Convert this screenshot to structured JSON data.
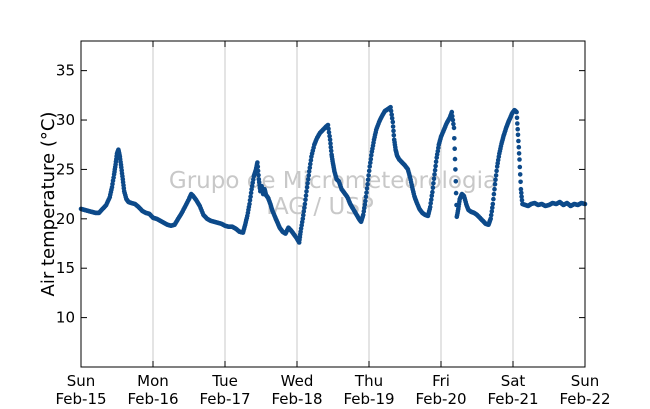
{
  "chart_data": {
    "type": "scatter",
    "title": "",
    "xlabel": "",
    "ylabel": "Air temperature (°C)",
    "xlim": [
      0,
      7
    ],
    "ylim": [
      5,
      38
    ],
    "x_unit": "days",
    "yticks": [
      10,
      15,
      20,
      25,
      30,
      35
    ],
    "xticks": [
      {
        "day": "Sun",
        "date": "Feb-15"
      },
      {
        "day": "Mon",
        "date": "Feb-16"
      },
      {
        "day": "Tue",
        "date": "Feb-17"
      },
      {
        "day": "Wed",
        "date": "Feb-18"
      },
      {
        "day": "Thu",
        "date": "Feb-19"
      },
      {
        "day": "Fri",
        "date": "Feb-20"
      },
      {
        "day": "Sat",
        "date": "Feb-21"
      },
      {
        "day": "Sun",
        "date": "Feb-22"
      }
    ],
    "grid": "vertical",
    "watermark": [
      "Grupo de Micrometeorologia",
      "IAG / USP"
    ],
    "color": "#0d4a8a",
    "series": [
      {
        "name": "",
        "points": [
          [
            0.0,
            21.0
          ],
          [
            0.05,
            20.9
          ],
          [
            0.1,
            20.8
          ],
          [
            0.15,
            20.7
          ],
          [
            0.2,
            20.6
          ],
          [
            0.25,
            20.6
          ],
          [
            0.3,
            21.0
          ],
          [
            0.35,
            21.4
          ],
          [
            0.4,
            22.2
          ],
          [
            0.43,
            23.2
          ],
          [
            0.46,
            24.5
          ],
          [
            0.48,
            25.5
          ],
          [
            0.5,
            26.6
          ],
          [
            0.52,
            27.0
          ],
          [
            0.54,
            26.3
          ],
          [
            0.56,
            25.2
          ],
          [
            0.58,
            24.0
          ],
          [
            0.6,
            22.8
          ],
          [
            0.63,
            22.0
          ],
          [
            0.66,
            21.7
          ],
          [
            0.7,
            21.6
          ],
          [
            0.75,
            21.5
          ],
          [
            0.8,
            21.2
          ],
          [
            0.85,
            20.8
          ],
          [
            0.9,
            20.6
          ],
          [
            0.95,
            20.5
          ],
          [
            1.0,
            20.1
          ],
          [
            1.05,
            20.0
          ],
          [
            1.1,
            19.8
          ],
          [
            1.15,
            19.6
          ],
          [
            1.2,
            19.4
          ],
          [
            1.25,
            19.3
          ],
          [
            1.3,
            19.4
          ],
          [
            1.35,
            20.0
          ],
          [
            1.4,
            20.6
          ],
          [
            1.45,
            21.3
          ],
          [
            1.5,
            22.0
          ],
          [
            1.53,
            22.5
          ],
          [
            1.56,
            22.3
          ],
          [
            1.6,
            21.9
          ],
          [
            1.65,
            21.3
          ],
          [
            1.7,
            20.4
          ],
          [
            1.75,
            20.0
          ],
          [
            1.8,
            19.8
          ],
          [
            1.85,
            19.7
          ],
          [
            1.9,
            19.6
          ],
          [
            1.95,
            19.5
          ],
          [
            2.0,
            19.3
          ],
          [
            2.05,
            19.2
          ],
          [
            2.1,
            19.2
          ],
          [
            2.15,
            19.0
          ],
          [
            2.2,
            18.7
          ],
          [
            2.25,
            18.6
          ],
          [
            2.28,
            19.4
          ],
          [
            2.31,
            20.3
          ],
          [
            2.34,
            21.5
          ],
          [
            2.37,
            23.0
          ],
          [
            2.4,
            24.3
          ],
          [
            2.43,
            25.0
          ],
          [
            2.45,
            25.7
          ],
          [
            2.47,
            24.0
          ],
          [
            2.49,
            22.8
          ],
          [
            2.51,
            23.3
          ],
          [
            2.53,
            22.5
          ],
          [
            2.55,
            23.0
          ],
          [
            2.57,
            22.4
          ],
          [
            2.6,
            22.1
          ],
          [
            2.63,
            21.5
          ],
          [
            2.66,
            20.8
          ],
          [
            2.7,
            20.1
          ],
          [
            2.73,
            19.6
          ],
          [
            2.76,
            19.1
          ],
          [
            2.8,
            18.7
          ],
          [
            2.84,
            18.5
          ],
          [
            2.88,
            19.1
          ],
          [
            2.92,
            18.8
          ],
          [
            2.96,
            18.4
          ],
          [
            3.0,
            18.0
          ],
          [
            3.03,
            17.6
          ],
          [
            3.05,
            18.7
          ],
          [
            3.08,
            20.0
          ],
          [
            3.11,
            21.5
          ],
          [
            3.14,
            23.2
          ],
          [
            3.17,
            24.8
          ],
          [
            3.2,
            26.3
          ],
          [
            3.24,
            27.5
          ],
          [
            3.28,
            28.2
          ],
          [
            3.32,
            28.7
          ],
          [
            3.36,
            29.0
          ],
          [
            3.4,
            29.3
          ],
          [
            3.43,
            29.5
          ],
          [
            3.46,
            28.0
          ],
          [
            3.48,
            26.5
          ],
          [
            3.5,
            25.6
          ],
          [
            3.52,
            24.8
          ],
          [
            3.55,
            24.0
          ],
          [
            3.58,
            23.8
          ],
          [
            3.62,
            23.0
          ],
          [
            3.66,
            22.6
          ],
          [
            3.7,
            22.2
          ],
          [
            3.74,
            21.5
          ],
          [
            3.78,
            21.0
          ],
          [
            3.82,
            20.5
          ],
          [
            3.86,
            20.0
          ],
          [
            3.89,
            19.7
          ],
          [
            3.92,
            20.4
          ],
          [
            3.95,
            21.8
          ],
          [
            3.98,
            23.5
          ],
          [
            4.01,
            25.3
          ],
          [
            4.04,
            26.8
          ],
          [
            4.07,
            28.0
          ],
          [
            4.1,
            29.0
          ],
          [
            4.14,
            29.8
          ],
          [
            4.18,
            30.4
          ],
          [
            4.22,
            30.9
          ],
          [
            4.26,
            31.1
          ],
          [
            4.3,
            31.3
          ],
          [
            4.33,
            29.8
          ],
          [
            4.35,
            28.0
          ],
          [
            4.37,
            27.0
          ],
          [
            4.39,
            26.4
          ],
          [
            4.42,
            26.0
          ],
          [
            4.46,
            25.7
          ],
          [
            4.5,
            25.4
          ],
          [
            4.54,
            25.0
          ],
          [
            4.57,
            24.2
          ],
          [
            4.6,
            23.2
          ],
          [
            4.63,
            22.3
          ],
          [
            4.66,
            21.7
          ],
          [
            4.7,
            21.0
          ],
          [
            4.74,
            20.6
          ],
          [
            4.78,
            20.4
          ],
          [
            4.82,
            20.3
          ],
          [
            4.85,
            21.2
          ],
          [
            4.88,
            22.7
          ],
          [
            4.91,
            24.5
          ],
          [
            4.94,
            26.2
          ],
          [
            4.97,
            27.5
          ],
          [
            5.0,
            28.3
          ],
          [
            5.04,
            29.0
          ],
          [
            5.08,
            29.7
          ],
          [
            5.12,
            30.2
          ],
          [
            5.15,
            30.8
          ],
          [
            5.18,
            29.2
          ],
          [
            5.2,
            25.0
          ],
          [
            5.22,
            20.2
          ],
          [
            5.24,
            21.0
          ],
          [
            5.26,
            22.0
          ],
          [
            5.29,
            22.5
          ],
          [
            5.32,
            22.3
          ],
          [
            5.35,
            21.5
          ],
          [
            5.38,
            20.9
          ],
          [
            5.42,
            20.7
          ],
          [
            5.46,
            20.6
          ],
          [
            5.5,
            20.4
          ],
          [
            5.54,
            20.1
          ],
          [
            5.58,
            19.8
          ],
          [
            5.62,
            19.5
          ],
          [
            5.66,
            19.4
          ],
          [
            5.69,
            20.0
          ],
          [
            5.72,
            21.5
          ],
          [
            5.75,
            23.5
          ],
          [
            5.78,
            25.3
          ],
          [
            5.81,
            26.6
          ],
          [
            5.84,
            27.6
          ],
          [
            5.87,
            28.4
          ],
          [
            5.9,
            29.1
          ],
          [
            5.93,
            29.7
          ],
          [
            5.96,
            30.2
          ],
          [
            5.99,
            30.7
          ],
          [
            6.02,
            31.0
          ],
          [
            6.05,
            30.8
          ],
          [
            6.07,
            28.5
          ],
          [
            6.09,
            26.0
          ],
          [
            6.11,
            23.0
          ],
          [
            6.13,
            21.5
          ],
          [
            6.17,
            21.4
          ],
          [
            6.21,
            21.3
          ],
          [
            6.25,
            21.5
          ],
          [
            6.3,
            21.6
          ],
          [
            6.35,
            21.4
          ],
          [
            6.4,
            21.5
          ],
          [
            6.45,
            21.3
          ],
          [
            6.5,
            21.4
          ],
          [
            6.55,
            21.6
          ],
          [
            6.6,
            21.5
          ],
          [
            6.65,
            21.7
          ],
          [
            6.7,
            21.4
          ],
          [
            6.75,
            21.6
          ],
          [
            6.8,
            21.3
          ],
          [
            6.85,
            21.5
          ],
          [
            6.9,
            21.4
          ],
          [
            6.95,
            21.6
          ],
          [
            7.0,
            21.5
          ]
        ]
      }
    ]
  }
}
